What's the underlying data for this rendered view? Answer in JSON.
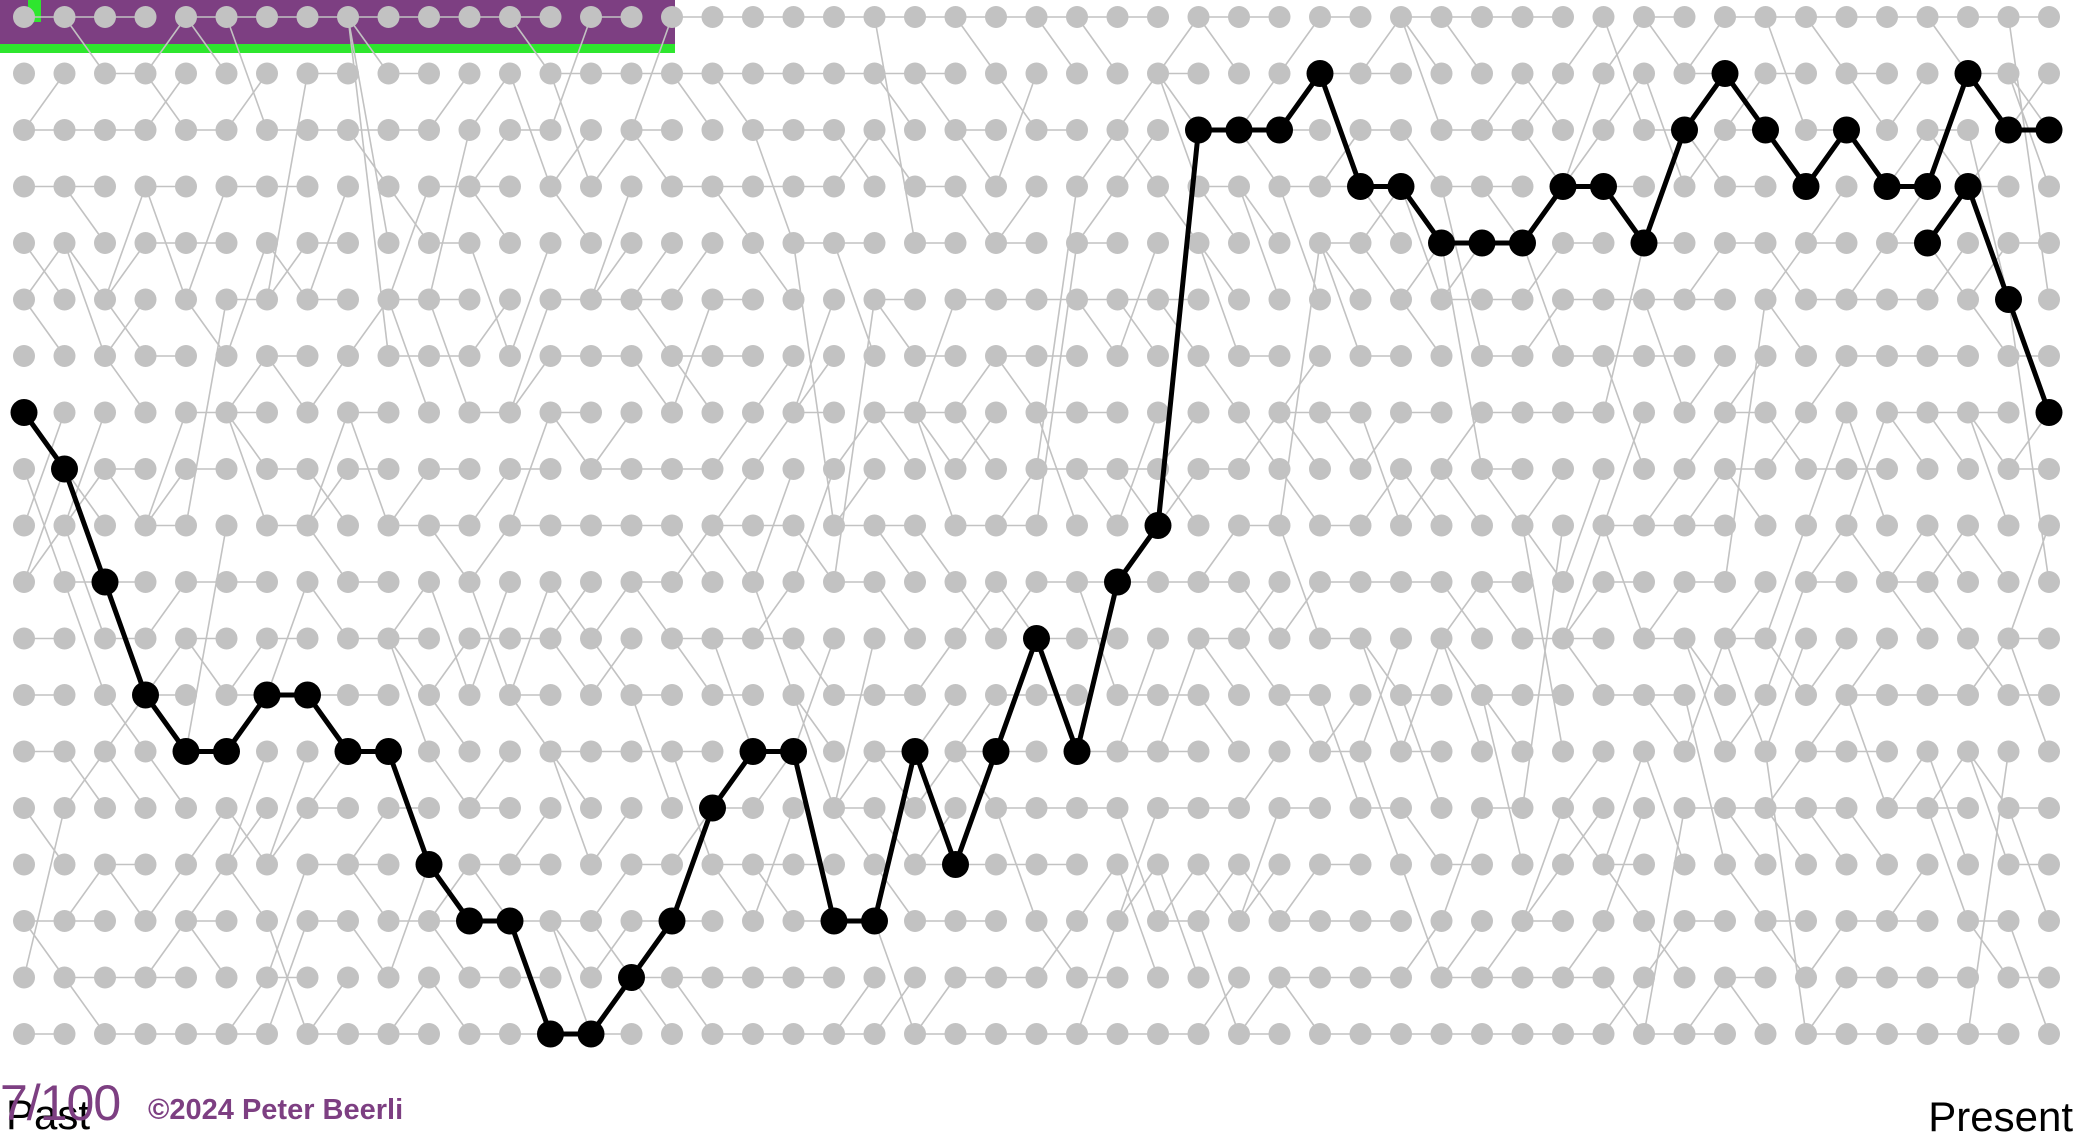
{
  "labels": {
    "past": "Past",
    "present": "Present",
    "slide_number": "7/100",
    "copyright": "©2024 Peter Beerli"
  },
  "colors": {
    "background": "#ffffff",
    "grid_node": "#c2c2c2",
    "grid_edge": "#c2c2c2",
    "lineage": "#000000",
    "banner": "#7d3f82",
    "banner_accent": "#2ee62e",
    "footer_text": "#7d3f82"
  },
  "genealogy": {
    "generations": 51,
    "population_size": 19,
    "lineage_path": [
      7,
      8,
      10,
      12,
      13,
      13,
      12,
      12,
      13,
      13,
      15,
      16,
      16,
      18,
      18,
      17,
      16,
      14,
      13,
      13,
      16,
      16,
      13,
      15,
      13,
      11,
      13,
      10,
      9,
      2,
      2,
      2,
      1,
      3,
      3,
      4,
      4,
      4,
      3,
      3,
      4,
      2,
      1,
      2,
      3,
      2,
      3,
      3,
      1,
      2,
      2
    ],
    "branch_lineage": [
      {
        "generation": 47,
        "individual": 4
      },
      {
        "generation": 48,
        "individual": 3
      },
      {
        "generation": 49,
        "individual": 5
      },
      {
        "generation": 50,
        "individual": 7
      }
    ]
  }
}
